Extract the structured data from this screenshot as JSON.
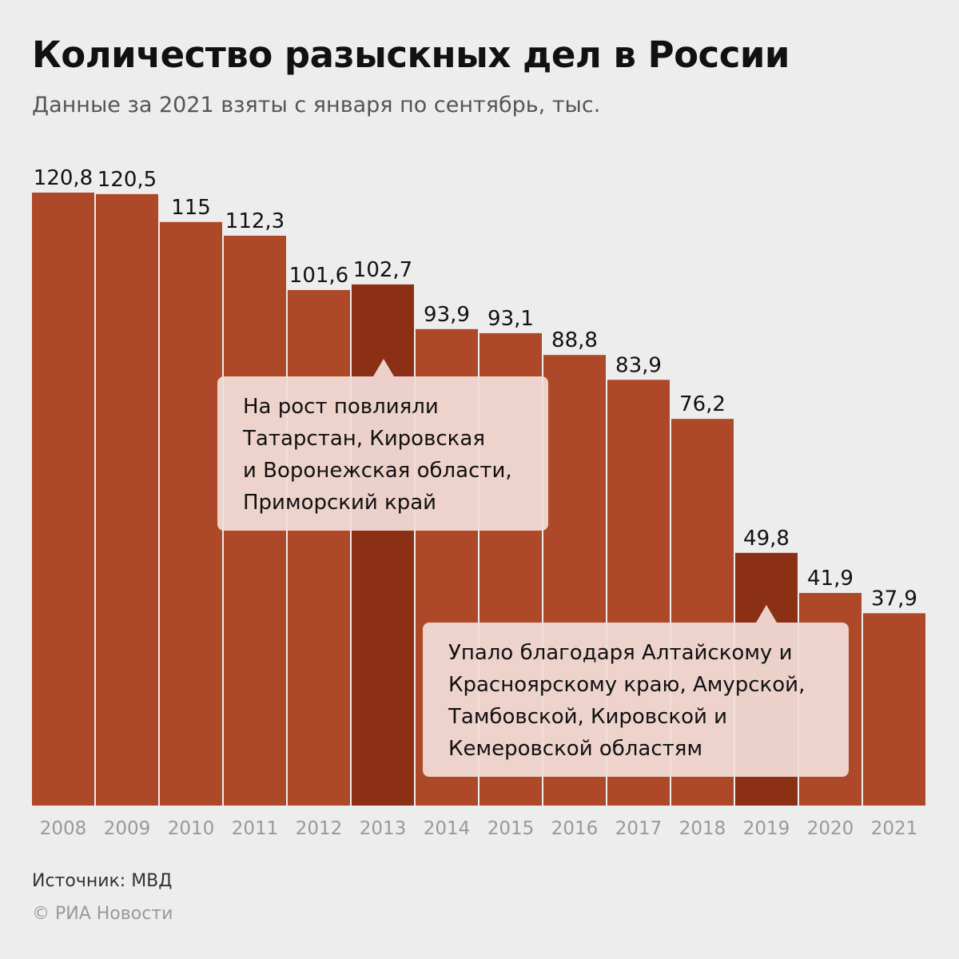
{
  "chart_data": {
    "type": "bar",
    "title": "Количество разыскных дел в России",
    "subtitle": "Данные за 2021 взяты с января по сентябрь, тыс.",
    "categories": [
      "2008",
      "2009",
      "2010",
      "2011",
      "2012",
      "2013",
      "2014",
      "2015",
      "2016",
      "2017",
      "2018",
      "2019",
      "2020",
      "2021"
    ],
    "values": [
      120.8,
      120.5,
      115,
      112.3,
      101.6,
      102.7,
      93.9,
      93.1,
      88.8,
      83.9,
      76.2,
      49.8,
      41.9,
      37.9
    ],
    "value_labels": [
      "120,8",
      "120,5",
      "115",
      "112,3",
      "101,6",
      "102,7",
      "93,9",
      "93,1",
      "88,8",
      "83,9",
      "76,2",
      "49,8",
      "41,9",
      "37,9"
    ],
    "highlighted": [
      "2013",
      "2019"
    ],
    "xlabel": "",
    "ylabel": "",
    "ylim": [
      0,
      120.8
    ],
    "grid": false,
    "annotations": [
      {
        "target": "2013",
        "lines": [
          "На рост повлияли",
          "Татарстан, Кировская",
          "и Воронежская области,",
          "Приморский край"
        ]
      },
      {
        "target": "2019",
        "lines": [
          "Упало благодаря Алтайскому и",
          "Красноярскому краю, Амурской,",
          "Тамбовской, Кировской и",
          "Кемеровской областям"
        ]
      }
    ]
  },
  "colors": {
    "bar": "#AD4828",
    "highlight": "#8B3015",
    "background": "#EDEDED"
  },
  "footer": {
    "source": "Источник: МВД",
    "copyright": "© РИА Новости"
  }
}
